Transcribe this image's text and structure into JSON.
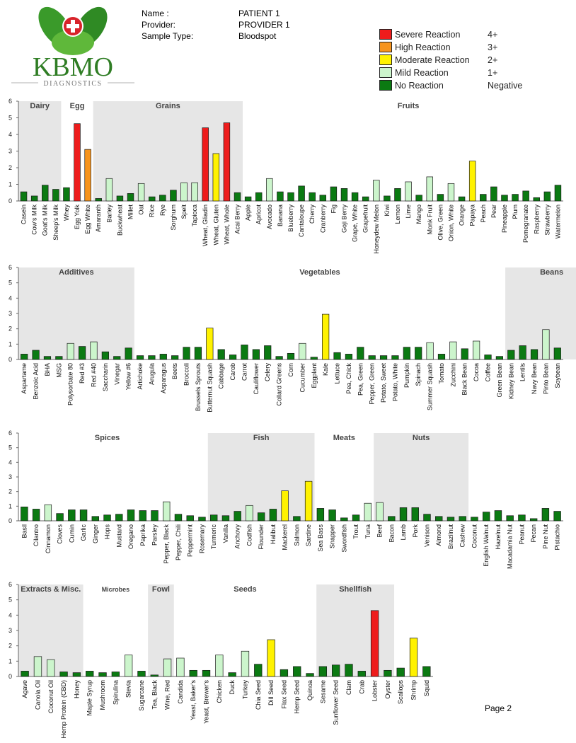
{
  "logo": {
    "brand": "KBMO",
    "sub": "DIAGNOSTICS"
  },
  "header": {
    "rows": [
      {
        "label": "Name :",
        "value": "PATIENT 1"
      },
      {
        "label": "Provider:",
        "value": "PROVIDER 1"
      },
      {
        "label": "Sample Type:",
        "value": "Bloodspot"
      }
    ]
  },
  "legend": [
    {
      "label": "Severe Reaction",
      "grade": "4+",
      "color": "#ee1c1c"
    },
    {
      "label": "High Reaction",
      "grade": "3+",
      "color": "#f7941d"
    },
    {
      "label": "Moderate Reaction",
      "grade": "2+",
      "color": "#fff200"
    },
    {
      "label": "Mild Reaction",
      "grade": "1+",
      "color": "#ccf5cc"
    },
    {
      "label": "No Reaction",
      "grade": "Negative",
      "color": "#0b7a12"
    }
  ],
  "page_label": "Page 2",
  "chart_data": [
    {
      "type": "bar",
      "ylim": [
        0,
        6
      ],
      "yticks": [
        0,
        1,
        2,
        3,
        4,
        5,
        6
      ],
      "groups": [
        {
          "name": "Dairy",
          "start": 0,
          "end": 4,
          "shaded": true
        },
        {
          "name": "Egg",
          "start": 5,
          "end": 6,
          "shaded": false
        },
        {
          "name": "Grains",
          "start": 7,
          "end": 21,
          "shaded": true
        },
        {
          "name": "Fruits",
          "start": 22,
          "end": 51,
          "shaded": false
        }
      ],
      "categories": [
        "Casein",
        "Cow's Milk",
        "Goat's Milk",
        "Sheep's Milk",
        "Whey",
        "Egg Yolk",
        "Egg White",
        "Amaranth",
        "Barley",
        "Buckwheat",
        "Millet",
        "Oat",
        "Rice",
        "Rye",
        "Sorghum",
        "Spelt",
        "Tapioca",
        "Wheat, Gliadin",
        "Wheat, Gluten",
        "Wheat, Whole",
        "Acai Berry",
        "Apple",
        "Apricot",
        "Avocado",
        "Banana",
        "Blueberry",
        "Cantaloupe",
        "Cherry",
        "Cranberry",
        "Fig",
        "Goji Berry",
        "Grape, White",
        "Grapefruit",
        "Honeydew Melon",
        "Kiwi",
        "Lemon",
        "Lime",
        "Mango",
        "Monk Fruit",
        "Olive, Green",
        "Onion, White",
        "Orange",
        "Papaya",
        "Peach",
        "Pear",
        "Pineapple",
        "Plum",
        "Pomegranate",
        "Raspberry",
        "Strawberry",
        "Watermelon"
      ],
      "values": [
        0.55,
        0.3,
        0.95,
        0.7,
        0.8,
        4.65,
        3.1,
        0.15,
        1.35,
        0.3,
        0.45,
        1.05,
        0.25,
        0.35,
        0.65,
        1.1,
        1.1,
        4.4,
        2.85,
        4.7,
        0.5,
        0.25,
        0.5,
        1.35,
        0.55,
        0.5,
        0.9,
        0.5,
        0.35,
        0.85,
        0.75,
        0.5,
        0.25,
        1.25,
        0.3,
        0.75,
        1.15,
        0.35,
        1.45,
        0.4,
        1.05,
        0.25,
        2.4,
        0.4,
        0.85,
        0.35,
        0.4,
        0.6,
        0.2,
        0.55,
        0.95
      ]
    },
    {
      "type": "bar",
      "ylim": [
        0,
        6
      ],
      "yticks": [
        0,
        1,
        2,
        3,
        4,
        5,
        6
      ],
      "groups": [
        {
          "name": "Additives",
          "start": 0,
          "end": 10,
          "shaded": true
        },
        {
          "name": "Vegetables",
          "start": 11,
          "end": 41,
          "shaded": false
        },
        {
          "name": "Beans",
          "start": 42,
          "end": 50,
          "shaded": true
        }
      ],
      "categories": [
        "Aspartame",
        "Benzoic Acid",
        "BHA",
        "MSG",
        "Polysorbate 80",
        "Red #3",
        "Red #40",
        "Saccharin",
        "Vinegar",
        "Yellow #6",
        "Artichoke",
        "Arugula",
        "Asparagus",
        "Beets",
        "Broccoli",
        "Brussels Sprouts",
        "Butternut Squash",
        "Cabbage",
        "Carob",
        "Carrot",
        "Cauliflower",
        "Celery",
        "Collard Greens",
        "Corn",
        "Cucumber",
        "Eggplant",
        "Kale",
        "Lettuce",
        "Pea, Chick",
        "Pea, Green",
        "Pepper, Green",
        "Potato, Sweet",
        "Potato, White",
        "Pumpkin",
        "Spinach",
        "Summer Squash",
        "Tomato",
        "Zucchini",
        "Black Bean",
        "Cocoa",
        "Coffee",
        "Green Bean",
        "Kidney Bean",
        "Lentils",
        "Navy Bean",
        "Pinto Bean",
        "Soybean"
      ],
      "values": [
        0.35,
        0.6,
        0.2,
        0.2,
        1.05,
        0.85,
        1.15,
        0.5,
        0.2,
        0.75,
        0.25,
        0.25,
        0.35,
        0.25,
        0.8,
        0.8,
        2.05,
        0.65,
        0.3,
        0.95,
        0.65,
        0.9,
        0.2,
        0.4,
        1.05,
        0.15,
        2.95,
        0.45,
        0.35,
        0.8,
        0.25,
        0.25,
        0.25,
        0.8,
        0.8,
        1.1,
        0.35,
        1.15,
        0.7,
        1.2,
        0.3,
        0.2,
        0.6,
        0.9,
        0.65,
        1.95,
        0.75
      ]
    },
    {
      "type": "bar",
      "ylim": [
        0,
        6
      ],
      "yticks": [
        0,
        1,
        2,
        3,
        4,
        5,
        6
      ],
      "groups": [
        {
          "name": "Spices",
          "start": 0,
          "end": 15,
          "shaded": false
        },
        {
          "name": "Fish",
          "start": 16,
          "end": 25,
          "shaded": true
        },
        {
          "name": "Meats",
          "start": 26,
          "end": 29,
          "shaded": false
        },
        {
          "name": "Nuts",
          "start": 30,
          "end": 38,
          "shaded": true
        }
      ],
      "categories": [
        "Basil",
        "Cilantro",
        "Cinnamon",
        "Cloves",
        "Cumin",
        "Garlic",
        "Ginger",
        "Hops",
        "Mustard",
        "Oregano",
        "Paprika",
        "Parsley",
        "Pepper, Black",
        "Pepper, Chili",
        "Peppermint",
        "Rosemary",
        "Turmeric",
        "Vanilla",
        "Anchovy",
        "Codfish",
        "Flounder",
        "Halibut",
        "Mackerel",
        "Salmon",
        "Sardine",
        "Sea Bass",
        "Snapper",
        "Swordfish",
        "Trout",
        "Tuna",
        "Beef",
        "Bacon",
        "Lamb",
        "Pork",
        "Venison",
        "Almond",
        "Brazilnut",
        "Cashew",
        "Coconut",
        "English Walnut",
        "Hazelnut",
        "Macadamia Nut",
        "Peanut",
        "Pecan",
        "Pine Nut",
        "Pistachio"
      ],
      "values": [
        0.95,
        0.8,
        1.1,
        0.5,
        0.75,
        0.75,
        0.3,
        0.4,
        0.45,
        0.75,
        0.7,
        0.7,
        1.3,
        0.45,
        0.35,
        0.25,
        0.4,
        0.35,
        0.65,
        1.05,
        0.55,
        0.8,
        2.05,
        0.3,
        2.7,
        0.85,
        0.75,
        0.2,
        0.4,
        1.2,
        1.25,
        0.3,
        0.9,
        0.9,
        0.45,
        0.3,
        0.25,
        0.3,
        0.25,
        0.6,
        0.7,
        0.35,
        0.4,
        0.15,
        0.85,
        0.65
      ]
    },
    {
      "type": "bar",
      "ylim": [
        0,
        6
      ],
      "yticks": [
        0,
        1,
        2,
        3,
        4,
        5,
        6
      ],
      "groups": [
        {
          "name": "Extracts & Misc.",
          "start": 0,
          "end": 5,
          "shaded": true
        },
        {
          "name": "Microbes",
          "start": 6,
          "end": 9,
          "shaded": false
        },
        {
          "name": "Fowl",
          "start": 10,
          "end": 12,
          "shaded": true
        },
        {
          "name": "Seeds",
          "start": 13,
          "end": 22,
          "shaded": false
        },
        {
          "name": "Shellfish",
          "start": 23,
          "end": 29,
          "shaded": true
        }
      ],
      "categories": [
        "Agave",
        "Canola Oil",
        "Coconut Oil",
        "Hemp Protein (CBD)",
        "Honey",
        "Maple Syrup",
        "Mushroom",
        "Spirulina",
        "Stevia",
        "Sugarcane",
        "Tea, Black",
        "Wine, Red",
        "Candida",
        "Yeast, Baker's",
        "Yeast, Brewer's",
        "Chicken",
        "Duck",
        "Turkey",
        "Chia Seed",
        "Dill Seed",
        "Flax Seed",
        "Hemp Seed",
        "Quinoa",
        "Sesame",
        "Sunflower Seed",
        "Clam",
        "Crab",
        "Lobster",
        "Oyster",
        "Scallops",
        "Shrimp",
        "Squid"
      ],
      "values": [
        0.35,
        1.3,
        1.1,
        0.3,
        0.25,
        0.35,
        0.25,
        0.3,
        1.4,
        0.35,
        0.1,
        1.15,
        1.2,
        0.4,
        0.4,
        1.4,
        0.25,
        1.65,
        0.8,
        2.4,
        0.45,
        0.65,
        0.2,
        0.65,
        0.75,
        0.8,
        0.35,
        4.3,
        0.4,
        0.55,
        2.5,
        0.65
      ]
    }
  ]
}
